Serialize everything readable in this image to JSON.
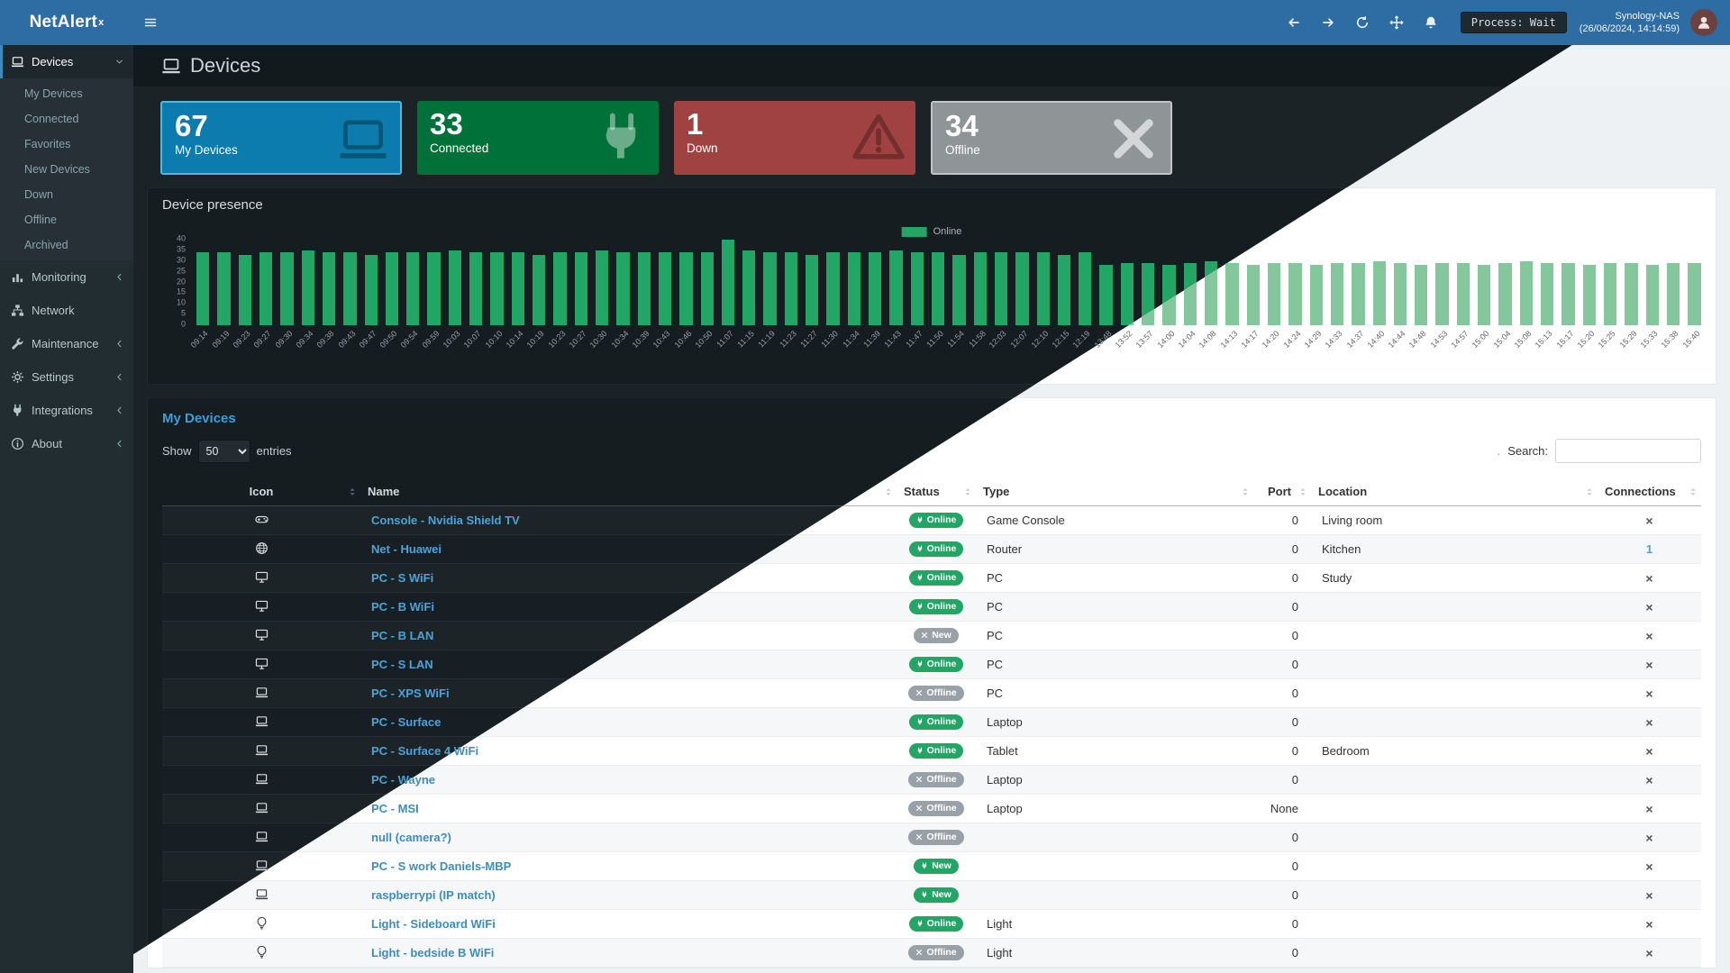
{
  "navbar": {
    "logo_main": "NetAlert",
    "logo_sup": "x",
    "process_status": "Process: Wait",
    "host": "Synology-NAS",
    "timestamp": "(26/06/2024, 14:14:59)"
  },
  "sidebar": {
    "items": [
      {
        "label": "Devices"
      },
      {
        "label": "Monitoring"
      },
      {
        "label": "Network"
      },
      {
        "label": "Maintenance"
      },
      {
        "label": "Settings"
      },
      {
        "label": "Integrations"
      },
      {
        "label": "About"
      }
    ],
    "devices_children": [
      "My Devices",
      "Connected",
      "Favorites",
      "New Devices",
      "Down",
      "Offline",
      "Archived"
    ]
  },
  "page": {
    "title": "Devices"
  },
  "stat_cards": [
    {
      "value": "67",
      "label": "My Devices",
      "color": "#0b7cad"
    },
    {
      "value": "33",
      "label": "Connected",
      "color": "#007138"
    },
    {
      "value": "1",
      "label": "Down",
      "color": "#a04241"
    },
    {
      "value": "34",
      "label": "Offline",
      "color": "#8f9496"
    }
  ],
  "chart_data": {
    "type": "bar",
    "title": "Device presence",
    "legend": "Online",
    "color_online": "#22a565",
    "ylim": [
      0,
      40
    ],
    "yticks": [
      0,
      5,
      10,
      15,
      20,
      25,
      30,
      35,
      40
    ],
    "labels": [
      "09:14",
      "09:19",
      "09:23",
      "09:27",
      "09:30",
      "09:34",
      "09:38",
      "09:43",
      "09:47",
      "09:50",
      "09:54",
      "09:59",
      "10:03",
      "10:07",
      "10:10",
      "10:14",
      "10:19",
      "10:23",
      "10:27",
      "10:30",
      "10:34",
      "10:39",
      "10:43",
      "10:46",
      "10:50",
      "11:07",
      "11:15",
      "11:19",
      "11:23",
      "11:27",
      "11:30",
      "11:34",
      "11:39",
      "11:43",
      "11:47",
      "11:50",
      "11:54",
      "11:58",
      "12:03",
      "12:07",
      "12:10",
      "12:15",
      "12:19",
      "13:48",
      "13:52",
      "13:57",
      "14:00",
      "14:04",
      "14:08",
      "14:13",
      "14:17",
      "14:20",
      "14:24",
      "14:29",
      "14:33",
      "14:37",
      "14:40",
      "14:44",
      "14:48",
      "14:53",
      "14:57",
      "15:00",
      "15:04",
      "15:08",
      "15:13",
      "15:17",
      "15:20",
      "15:25",
      "15:29",
      "15:33",
      "15:38",
      "15:40"
    ],
    "values": [
      34,
      34,
      33,
      34,
      34,
      35,
      34,
      34,
      33,
      34,
      34,
      34,
      35,
      34,
      34,
      34,
      33,
      34,
      34,
      35,
      34,
      34,
      34,
      34,
      34,
      40,
      35,
      34,
      34,
      33,
      34,
      34,
      34,
      35,
      34,
      34,
      33,
      34,
      34,
      34,
      34,
      33,
      34,
      28,
      29,
      29,
      28,
      29,
      30,
      29,
      28,
      29,
      29,
      28,
      29,
      29,
      30,
      29,
      28,
      29,
      29,
      28,
      29,
      30,
      29,
      29,
      28,
      29,
      29,
      28,
      29,
      29
    ]
  },
  "table": {
    "section_title": "My Devices",
    "show_label": "Show",
    "page_length": "50",
    "entries_label": "entries",
    "search_dot": ".",
    "search_label": "Search:",
    "columns": [
      "Icon",
      "Name",
      "Status",
      "Type",
      "Port",
      "Location",
      "Connections"
    ],
    "rows": [
      {
        "icon": "gamepad-icon",
        "name": "Console - Nvidia Shield TV",
        "status": "Online",
        "badge": "green",
        "status_icon": "plug-icon",
        "type": "Game Console",
        "port": "0",
        "location": "Living room",
        "connections": "×",
        "connections_link": false
      },
      {
        "icon": "globe-icon",
        "name": "Net - Huawei",
        "status": "Online",
        "badge": "green",
        "status_icon": "plug-icon",
        "type": "Router",
        "port": "0",
        "location": "Kitchen",
        "connections": "1",
        "connections_link": true
      },
      {
        "icon": "desktop-icon",
        "name": "PC - S WiFi",
        "status": "Online",
        "badge": "green",
        "status_icon": "plug-icon",
        "type": "PC",
        "port": "0",
        "location": "Study",
        "connections": "×",
        "connections_link": false
      },
      {
        "icon": "desktop-icon",
        "name": "PC - B WiFi",
        "status": "Online",
        "badge": "green",
        "status_icon": "plug-icon",
        "type": "PC",
        "port": "0",
        "location": "",
        "connections": "×",
        "connections_link": false
      },
      {
        "icon": "desktop-icon",
        "name": "PC - B LAN",
        "status": "New",
        "badge": "gray",
        "status_icon": "x-icon",
        "type": "PC",
        "port": "0",
        "location": "",
        "connections": "×",
        "connections_link": false
      },
      {
        "icon": "desktop-icon",
        "name": "PC - S LAN",
        "status": "Online",
        "badge": "green",
        "status_icon": "plug-icon",
        "type": "PC",
        "port": "0",
        "location": "",
        "connections": "×",
        "connections_link": false
      },
      {
        "icon": "laptop-icon",
        "name": "PC - XPS WiFi",
        "status": "Offline",
        "badge": "gray",
        "status_icon": "x-icon",
        "type": "PC",
        "port": "0",
        "location": "",
        "connections": "×",
        "connections_link": false
      },
      {
        "icon": "laptop-icon",
        "name": "PC - Surface",
        "status": "Online",
        "badge": "green",
        "status_icon": "plug-icon",
        "type": "Laptop",
        "port": "0",
        "location": "",
        "connections": "×",
        "connections_link": false
      },
      {
        "icon": "laptop-icon",
        "name": "PC - Surface 4 WiFi",
        "status": "Online",
        "badge": "green",
        "status_icon": "plug-icon",
        "type": "Tablet",
        "port": "0",
        "location": "Bedroom",
        "connections": "×",
        "connections_link": false
      },
      {
        "icon": "laptop-icon",
        "name": "PC - Wayne",
        "status": "Offline",
        "badge": "gray",
        "status_icon": "x-icon",
        "type": "Laptop",
        "port": "0",
        "location": "",
        "connections": "×",
        "connections_link": false
      },
      {
        "icon": "laptop-icon",
        "name": "PC - MSI",
        "status": "Offline",
        "badge": "gray",
        "status_icon": "x-icon",
        "type": "Laptop",
        "port": "None",
        "location": "",
        "connections": "×",
        "connections_link": false
      },
      {
        "icon": "laptop-icon",
        "name": "null (camera?)",
        "status": "Offline",
        "badge": "gray",
        "status_icon": "x-icon",
        "type": "",
        "port": "0",
        "location": "",
        "connections": "×",
        "connections_link": false
      },
      {
        "icon": "laptop-icon",
        "name": "PC - S work Daniels-MBP",
        "status": "New",
        "badge": "green",
        "status_icon": "plug-icon",
        "type": "",
        "port": "0",
        "location": "",
        "connections": "×",
        "connections_link": false
      },
      {
        "icon": "laptop-icon",
        "name": "raspberrypi (IP match)",
        "status": "New",
        "badge": "green",
        "status_icon": "plug-icon",
        "type": "",
        "port": "0",
        "location": "",
        "connections": "×",
        "connections_link": false
      },
      {
        "icon": "lightbulb-icon",
        "name": "Light - Sideboard WiFi",
        "status": "Online",
        "badge": "green",
        "status_icon": "plug-icon",
        "type": "Light",
        "port": "0",
        "location": "",
        "connections": "×",
        "connections_link": false
      },
      {
        "icon": "lightbulb-icon",
        "name": "Light - bedside B WiFi",
        "status": "Offline",
        "badge": "gray",
        "status_icon": "x-icon",
        "type": "Light",
        "port": "0",
        "location": "",
        "connections": "×",
        "connections_link": false
      }
    ]
  }
}
